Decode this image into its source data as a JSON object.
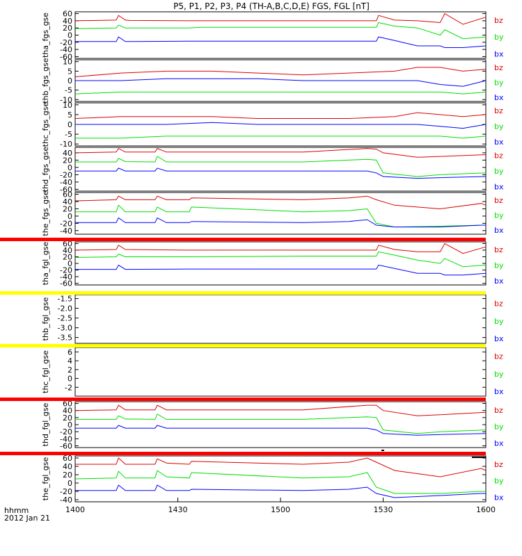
{
  "title": "P5, P1, P2, P3, P4 (TH-A,B,C,D,E) FGS, FGL [nT]",
  "time_axis": {
    "ticks": [
      "1400",
      "1430",
      "1500",
      "1530",
      "1600"
    ],
    "label_line1": "hhmm",
    "label_line2": "2012 Jan 21"
  },
  "colors": {
    "bx": "#0000ff",
    "by": "#00dd00",
    "bz": "#dd0000",
    "bar_red": "#ff0000",
    "bar_yellow": "#ffff00",
    "bar_black": "#000000"
  },
  "chart_data": [
    {
      "type": "line",
      "ylabel": "tha_fgs_gse",
      "ylim": [
        -65,
        65
      ],
      "yticks": [
        "60",
        "40",
        "20",
        "0",
        "-20",
        "-40",
        "-60"
      ],
      "ytick_values": [
        60,
        40,
        20,
        0,
        -20,
        -40,
        -60
      ],
      "x": [
        0,
        18,
        19,
        22,
        24,
        50,
        55,
        100,
        132,
        133,
        140,
        150,
        160,
        162,
        170,
        180
      ],
      "series": [
        {
          "name": "bz",
          "values": [
            40,
            42,
            55,
            42,
            41,
            40,
            40,
            40,
            40,
            55,
            42,
            40,
            35,
            60,
            30,
            50
          ]
        },
        {
          "name": "by",
          "values": [
            18,
            20,
            28,
            20,
            20,
            20,
            22,
            22,
            22,
            35,
            25,
            20,
            0,
            15,
            -10,
            -5
          ]
        },
        {
          "name": "bx",
          "values": [
            -18,
            -18,
            -5,
            -18,
            -18,
            -17,
            -17,
            -17,
            -17,
            -5,
            -15,
            -30,
            -30,
            -35,
            -35,
            -30
          ]
        }
      ],
      "series_labels": [
        "bz",
        "by",
        "bx"
      ]
    },
    {
      "type": "line",
      "ylabel": "thb_fgs_gse",
      "ylim": [
        -11,
        11
      ],
      "yticks": [
        "10",
        "5",
        "0",
        "-5",
        "-10"
      ],
      "ytick_values": [
        10,
        5,
        0,
        -5,
        -10
      ],
      "x": [
        0,
        20,
        40,
        60,
        80,
        100,
        120,
        140,
        150,
        160,
        170,
        180
      ],
      "series": [
        {
          "name": "bz",
          "values": [
            2,
            4,
            5,
            5,
            4,
            3,
            4,
            5,
            7,
            7,
            5,
            6
          ]
        },
        {
          "name": "by",
          "values": [
            -7,
            -6,
            -6,
            -6,
            -6,
            -6,
            -6,
            -6,
            -6,
            -6,
            -7,
            -6
          ]
        },
        {
          "name": "bx",
          "values": [
            0,
            0,
            1,
            1,
            1,
            0,
            0,
            0,
            0,
            -2,
            -3,
            0
          ]
        }
      ],
      "series_labels": [
        "bz",
        "by",
        "bx"
      ]
    },
    {
      "type": "line",
      "ylabel": "thc_fgs_gse",
      "ylim": [
        -11,
        11
      ],
      "yticks": [
        "10",
        "5",
        "0",
        "-5",
        "-10"
      ],
      "ytick_values": [
        10,
        5,
        0,
        -5,
        -10
      ],
      "x": [
        0,
        20,
        40,
        60,
        80,
        100,
        120,
        140,
        150,
        160,
        170,
        180
      ],
      "series": [
        {
          "name": "bz",
          "values": [
            3,
            4,
            4,
            4,
            3,
            3,
            3,
            4,
            6,
            5,
            4,
            5
          ]
        },
        {
          "name": "by",
          "values": [
            -7,
            -7,
            -6,
            -6,
            -6,
            -6,
            -6,
            -6,
            -6,
            -6,
            -7,
            -6
          ]
        },
        {
          "name": "bx",
          "values": [
            0,
            0,
            0,
            1,
            0,
            0,
            0,
            0,
            0,
            -1,
            -2,
            0
          ]
        }
      ],
      "series_labels": [
        "bz",
        "by",
        "bx"
      ]
    },
    {
      "type": "line",
      "ylabel": "thd_fgs_gse",
      "ylim": [
        -65,
        55
      ],
      "yticks": [
        "40",
        "20",
        "0",
        "-20",
        "-40",
        "-60"
      ],
      "ytick_values": [
        40,
        20,
        0,
        -20,
        -40,
        -60
      ],
      "x": [
        0,
        18,
        19,
        22,
        35,
        36,
        40,
        100,
        128,
        132,
        135,
        150,
        160,
        180
      ],
      "series": [
        {
          "name": "bz",
          "values": [
            40,
            42,
            52,
            42,
            42,
            52,
            42,
            42,
            52,
            50,
            40,
            28,
            30,
            35
          ]
        },
        {
          "name": "by",
          "values": [
            15,
            15,
            25,
            16,
            15,
            30,
            15,
            15,
            22,
            20,
            -15,
            -25,
            -20,
            -15
          ]
        },
        {
          "name": "bx",
          "values": [
            -10,
            -10,
            -2,
            -10,
            -10,
            -2,
            -10,
            -10,
            -10,
            -15,
            -25,
            -30,
            -28,
            -25
          ]
        }
      ],
      "series_labels": [
        "bz",
        "by",
        "bx"
      ]
    },
    {
      "type": "line",
      "ylabel": "the_fgs_gse",
      "ylim": [
        -50,
        65
      ],
      "yticks": [
        "60",
        "40",
        "20",
        "0",
        "-20",
        "-40"
      ],
      "ytick_values": [
        60,
        40,
        20,
        0,
        -20,
        -40
      ],
      "x": [
        0,
        18,
        19,
        22,
        35,
        36,
        40,
        50,
        51,
        100,
        120,
        128,
        132,
        140,
        160,
        178,
        180
      ],
      "series": [
        {
          "name": "bz",
          "values": [
            42,
            45,
            55,
            45,
            45,
            55,
            45,
            45,
            50,
            45,
            50,
            55,
            45,
            30,
            20,
            35,
            30
          ]
        },
        {
          "name": "by",
          "values": [
            12,
            12,
            30,
            12,
            12,
            25,
            12,
            12,
            25,
            12,
            15,
            20,
            -20,
            -30,
            -28,
            -25,
            -25
          ]
        },
        {
          "name": "bx",
          "values": [
            -18,
            -18,
            -5,
            -18,
            -18,
            -5,
            -18,
            -18,
            -15,
            -18,
            -15,
            -10,
            -25,
            -30,
            -30,
            -25,
            -25
          ]
        }
      ],
      "series_labels": [
        "bz",
        "by",
        "bx"
      ]
    },
    {
      "type": "line",
      "ylabel": "tha_fgl_gse",
      "ylim": [
        -65,
        65
      ],
      "yticks": [
        "60",
        "40",
        "20",
        "0",
        "-20",
        "-40",
        "-60"
      ],
      "ytick_values": [
        60,
        40,
        20,
        0,
        -20,
        -40,
        -60
      ],
      "x": [
        0,
        18,
        19,
        22,
        50,
        100,
        132,
        133,
        140,
        150,
        160,
        162,
        170,
        180
      ],
      "series": [
        {
          "name": "bz",
          "values": [
            40,
            42,
            55,
            42,
            40,
            40,
            40,
            55,
            42,
            35,
            35,
            60,
            30,
            50
          ]
        },
        {
          "name": "by",
          "values": [
            18,
            20,
            28,
            20,
            20,
            22,
            22,
            35,
            25,
            10,
            0,
            15,
            -10,
            -5
          ]
        },
        {
          "name": "bx",
          "values": [
            -18,
            -18,
            -5,
            -18,
            -17,
            -17,
            -17,
            -5,
            -15,
            -30,
            -30,
            -35,
            -35,
            -30
          ]
        }
      ],
      "series_labels": [
        "bz",
        "by",
        "bx"
      ]
    },
    {
      "type": "line",
      "ylabel": "thb_fgl_gse",
      "ylim": [
        -3.8,
        -1.3
      ],
      "yticks": [
        "-1.5",
        "-2.0",
        "-2.5",
        "-3.0",
        "-3.5"
      ],
      "ytick_values": [
        -1.5,
        -2.0,
        -2.5,
        -3.0,
        -3.5
      ],
      "x": [],
      "series": [],
      "series_labels": [
        "bz",
        "by",
        "bx"
      ]
    },
    {
      "type": "line",
      "ylabel": "thc_fgl_gse",
      "ylim": [
        -4,
        7
      ],
      "yticks": [
        "6",
        "4",
        "2",
        "0",
        "-2"
      ],
      "ytick_values": [
        6,
        4,
        2,
        0,
        -2
      ],
      "x": [],
      "series": [],
      "series_labels": [
        "bz",
        "by",
        "bx"
      ]
    },
    {
      "type": "line",
      "ylabel": "thd_fgl_gse",
      "ylim": [
        -65,
        65
      ],
      "yticks": [
        "60",
        "40",
        "20",
        "0",
        "-20",
        "-40",
        "-60"
      ],
      "ytick_values": [
        60,
        40,
        20,
        0,
        -20,
        -40,
        -60
      ],
      "x": [
        0,
        18,
        19,
        22,
        35,
        36,
        40,
        100,
        128,
        132,
        135,
        150,
        160,
        180
      ],
      "series": [
        {
          "name": "bz",
          "values": [
            40,
            42,
            55,
            42,
            42,
            55,
            42,
            42,
            55,
            55,
            40,
            25,
            28,
            35
          ]
        },
        {
          "name": "by",
          "values": [
            15,
            15,
            25,
            16,
            15,
            30,
            15,
            15,
            22,
            20,
            -15,
            -25,
            -20,
            -15
          ]
        },
        {
          "name": "bx",
          "values": [
            -10,
            -10,
            -2,
            -10,
            -10,
            -2,
            -10,
            -10,
            -10,
            -15,
            -25,
            -30,
            -28,
            -25
          ]
        }
      ],
      "series_labels": [
        "bz",
        "by",
        "bx"
      ]
    },
    {
      "type": "line",
      "ylabel": "the_fgl_gse",
      "ylim": [
        -45,
        65
      ],
      "yticks": [
        "60",
        "40",
        "20",
        "0",
        "-20",
        "-40"
      ],
      "ytick_values": [
        60,
        40,
        20,
        0,
        -20,
        -40
      ],
      "x": [
        0,
        18,
        19,
        22,
        35,
        36,
        40,
        50,
        51,
        100,
        120,
        128,
        132,
        140,
        160,
        178,
        180
      ],
      "series": [
        {
          "name": "bz",
          "values": [
            45,
            45,
            60,
            45,
            45,
            58,
            48,
            45,
            52,
            45,
            50,
            60,
            50,
            30,
            15,
            35,
            30
          ]
        },
        {
          "name": "by",
          "values": [
            10,
            12,
            28,
            12,
            12,
            30,
            15,
            12,
            25,
            12,
            15,
            25,
            -10,
            -25,
            -25,
            -20,
            -20
          ]
        },
        {
          "name": "bx",
          "values": [
            -18,
            -18,
            -5,
            -18,
            -18,
            -5,
            -18,
            -18,
            -15,
            -18,
            -15,
            -10,
            -25,
            -35,
            -30,
            -25,
            -25
          ]
        }
      ],
      "series_labels": [
        "bz",
        "by",
        "bx"
      ]
    }
  ]
}
